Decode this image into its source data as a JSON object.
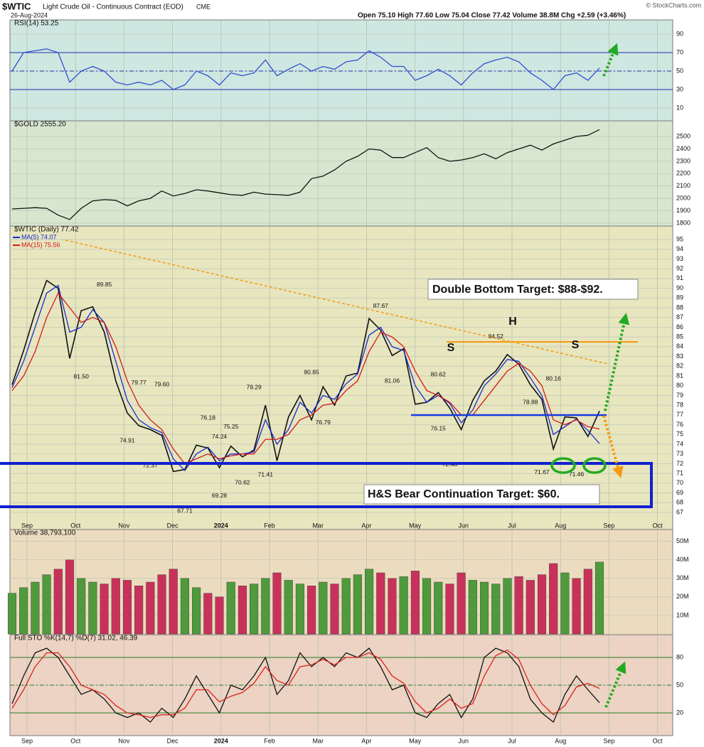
{
  "header": {
    "symbol": "$WTIC",
    "title": "Light Crude Oil - Continuous Contract (EOD)",
    "exchange": "CME",
    "date": "26-Aug-2024",
    "quote": "Open 75.10  High 77.60  Low 75.04  Close 77.42  Volume 38.8M  Chg +2.59 (+3.46%)",
    "credit": "© StockCharts.com"
  },
  "x_axis": {
    "categories": [
      "Sep",
      "Oct",
      "Nov",
      "Dec",
      "2024",
      "Feb",
      "Mar",
      "Apr",
      "May",
      "Jun",
      "Jul",
      "Aug",
      "Sep",
      "Oct"
    ]
  },
  "annotations": {
    "double_bottom": "Double Bottom Target: $88-$92.",
    "hs_target": "H&S Bear Continuation Target: $60.",
    "left_shoulder": "S",
    "head": "H",
    "right_shoulder": "S"
  },
  "chart_data": [
    {
      "type": "line",
      "title": "RSI(14) 53.25",
      "ylim": [
        -2.3,
        103.8
      ],
      "yticks": [
        10,
        30,
        50,
        70,
        90
      ],
      "reference_lines": [
        30,
        50,
        70
      ],
      "grid": true,
      "series": [
        {
          "name": "RSI(14)",
          "color": "#3050d0",
          "values": [
            50,
            70,
            72,
            74,
            70,
            38,
            50,
            55,
            50,
            38,
            35,
            38,
            35,
            40,
            30,
            35,
            50,
            45,
            35,
            48,
            45,
            48,
            62,
            45,
            52,
            58,
            50,
            55,
            52,
            60,
            62,
            72,
            65,
            55,
            55,
            40,
            45,
            52,
            45,
            35,
            48,
            58,
            62,
            65,
            60,
            48,
            40,
            30,
            45,
            48,
            40,
            53.25
          ]
        }
      ]
    },
    {
      "type": "line",
      "title": "$GOLD 2555.20",
      "ylim": [
        1777,
        2615
      ],
      "yticks": [
        1800,
        1900,
        2000,
        2100,
        2200,
        2300,
        2400,
        2500
      ],
      "grid": true,
      "series": [
        {
          "name": "$GOLD",
          "color": "#111111",
          "values": [
            1915,
            1920,
            1925,
            1920,
            1865,
            1830,
            1920,
            1980,
            1990,
            1985,
            1940,
            1980,
            2000,
            2060,
            2020,
            2040,
            2070,
            2060,
            2045,
            2030,
            2025,
            2050,
            2035,
            2030,
            2025,
            2050,
            2160,
            2180,
            2230,
            2300,
            2340,
            2400,
            2390,
            2330,
            2330,
            2370,
            2410,
            2330,
            2300,
            2310,
            2330,
            2360,
            2320,
            2370,
            2400,
            2430,
            2390,
            2440,
            2470,
            2500,
            2510,
            2555.2
          ]
        }
      ]
    },
    {
      "type": "line",
      "title": "$WTIC (Daily) 77.42",
      "ylim": [
        66.34,
        96.24
      ],
      "yticks": [
        67,
        68,
        69,
        70,
        71,
        72,
        73,
        74,
        75,
        76,
        77,
        78,
        79,
        80,
        81,
        82,
        83,
        84,
        85,
        86,
        87,
        88,
        89,
        90,
        91,
        92,
        93,
        94,
        95
      ],
      "grid": true,
      "series": [
        {
          "name": "$WTIC",
          "color": "#111111",
          "values": [
            80.1,
            83.6,
            87.5,
            90.8,
            90.0,
            82.8,
            87.7,
            88.1,
            85.5,
            80.5,
            77.2,
            75.9,
            75.5,
            74.9,
            71.2,
            71.4,
            73.9,
            73.6,
            71.6,
            73.8,
            72.7,
            73.4,
            78.0,
            72.3,
            76.8,
            79.0,
            76.5,
            79.9,
            78.0,
            81.0,
            81.3,
            86.9,
            85.7,
            83.1,
            83.8,
            78.1,
            78.3,
            79.3,
            77.7,
            75.5,
            78.5,
            80.5,
            81.5,
            83.2,
            82.2,
            80.1,
            78.6,
            73.5,
            76.8,
            76.7,
            74.8,
            77.4
          ]
        },
        {
          "name": "MA(5) 74.07",
          "color": "#1a2ad0",
          "values": [
            79.8,
            82.5,
            86.0,
            89.5,
            90.3,
            85.5,
            86.0,
            87.8,
            86.5,
            82.5,
            78.5,
            76.5,
            75.7,
            75.2,
            72.5,
            71.3,
            73.0,
            73.7,
            72.3,
            73.0,
            73.0,
            73.2,
            76.5,
            74.0,
            75.5,
            78.3,
            77.2,
            79.0,
            78.6,
            80.2,
            81.2,
            85.2,
            86.0,
            84.0,
            83.6,
            80.0,
            78.3,
            79.0,
            78.2,
            76.2,
            77.5,
            80.0,
            81.2,
            82.7,
            82.5,
            80.8,
            79.0,
            75.0,
            75.8,
            76.6,
            75.4,
            74.07
          ]
        },
        {
          "name": "MA(15) 75.56",
          "color": "#d81818",
          "values": [
            79.5,
            81.0,
            83.5,
            87.0,
            89.5,
            88.0,
            86.5,
            87.0,
            86.5,
            84.0,
            80.5,
            78.0,
            76.5,
            75.5,
            73.5,
            72.0,
            72.5,
            73.0,
            72.5,
            72.8,
            73.0,
            73.0,
            74.5,
            74.5,
            75.0,
            76.5,
            77.0,
            78.0,
            78.2,
            79.5,
            80.5,
            83.5,
            85.5,
            85.0,
            84.0,
            81.5,
            79.5,
            79.0,
            78.3,
            77.0,
            77.0,
            78.5,
            80.0,
            81.5,
            82.3,
            81.5,
            80.0,
            76.5,
            76.0,
            76.5,
            75.8,
            75.56
          ]
        }
      ],
      "price_labels": [
        {
          "value": 89.85,
          "at": 8
        },
        {
          "value": 81.5,
          "label": "81.50",
          "at": 6
        },
        {
          "value": 79.77,
          "at": 11
        },
        {
          "value": 74.91,
          "at": 10
        },
        {
          "value": 72.37,
          "at": 12
        },
        {
          "value": 79.6,
          "label": "79.60",
          "at": 13
        },
        {
          "value": 67.71,
          "at": 15
        },
        {
          "value": 76.18,
          "at": 17
        },
        {
          "value": 74.24,
          "at": 18
        },
        {
          "value": 75.25,
          "at": 19
        },
        {
          "value": 69.28,
          "at": 18
        },
        {
          "value": 70.62,
          "at": 20
        },
        {
          "value": 79.29,
          "at": 21
        },
        {
          "value": 71.41,
          "at": 22
        },
        {
          "value": 80.85,
          "at": 26
        },
        {
          "value": 76.79,
          "at": 27
        },
        {
          "value": 87.67,
          "at": 32
        },
        {
          "value": 81.06,
          "at": 33
        },
        {
          "value": 80.62,
          "at": 37
        },
        {
          "value": 76.15,
          "at": 37
        },
        {
          "value": 72.48,
          "at": 38
        },
        {
          "value": 84.52,
          "at": 42
        },
        {
          "value": 78.88,
          "at": 45
        },
        {
          "value": 80.16,
          "at": 47
        },
        {
          "value": 71.67,
          "at": 46
        },
        {
          "value": 71.46,
          "at": 49
        }
      ]
    },
    {
      "type": "bar",
      "title": "Volume 38,793,100",
      "ylim": [
        0,
        55600000
      ],
      "up_color": "#4f9a3c",
      "down_color": "#c8325a",
      "grid": true,
      "yticks": [
        {
          "value": 10000000,
          "label": "10M"
        },
        {
          "value": 20000000,
          "label": "20M"
        },
        {
          "value": 30000000,
          "label": "30M"
        },
        {
          "value": 40000000,
          "label": "40M"
        },
        {
          "value": 50000000,
          "label": "50M"
        }
      ],
      "values": [
        22000000,
        25000000,
        28000000,
        32000000,
        35000000,
        40000000,
        30000000,
        28000000,
        27000000,
        30000000,
        29000000,
        26000000,
        28000000,
        32000000,
        35000000,
        30000000,
        25000000,
        22000000,
        20000000,
        28000000,
        26000000,
        27000000,
        30000000,
        33000000,
        29000000,
        27000000,
        26000000,
        28000000,
        27000000,
        30000000,
        32000000,
        35000000,
        33000000,
        30000000,
        31000000,
        34000000,
        30000000,
        28000000,
        27000000,
        33000000,
        29000000,
        28000000,
        27000000,
        30000000,
        31000000,
        29000000,
        32000000,
        38000000,
        33000000,
        30000000,
        35000000,
        38793100
      ]
    },
    {
      "type": "line",
      "title": "Full STO %K(14,7) %D(7) 31.02, 46.39",
      "ylim": [
        -2.3,
        103.1
      ],
      "yticks": [
        20,
        50,
        80
      ],
      "reference_lines": [
        20,
        50,
        80
      ],
      "grid": true,
      "series": [
        {
          "name": "%K(14,7)",
          "color": "#111111",
          "values": [
            30,
            60,
            85,
            90,
            80,
            60,
            40,
            45,
            35,
            20,
            15,
            20,
            10,
            25,
            15,
            35,
            60,
            40,
            20,
            50,
            45,
            60,
            80,
            40,
            55,
            85,
            70,
            80,
            70,
            85,
            80,
            90,
            70,
            45,
            50,
            20,
            15,
            30,
            40,
            15,
            35,
            80,
            90,
            85,
            70,
            35,
            20,
            10,
            40,
            60,
            45,
            31.02
          ]
        },
        {
          "name": "%D(7)",
          "color": "#e02020",
          "values": [
            25,
            45,
            70,
            85,
            85,
            70,
            50,
            45,
            40,
            28,
            20,
            18,
            15,
            18,
            18,
            25,
            45,
            45,
            32,
            38,
            42,
            52,
            70,
            55,
            50,
            70,
            72,
            78,
            72,
            80,
            80,
            85,
            78,
            60,
            52,
            32,
            20,
            25,
            35,
            25,
            30,
            60,
            82,
            88,
            78,
            50,
            30,
            18,
            28,
            48,
            52,
            46.39
          ]
        }
      ]
    }
  ]
}
